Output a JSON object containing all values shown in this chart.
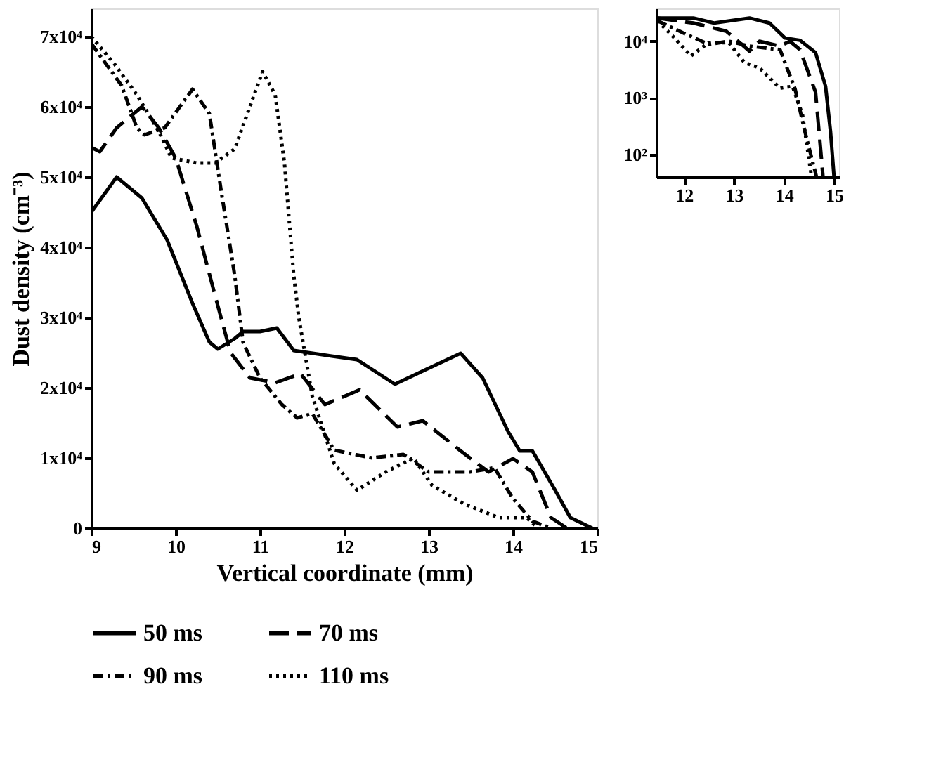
{
  "chart_data": [
    {
      "type": "line",
      "xlabel": "Vertical coordinate (mm)",
      "ylabel": "Dust density (cm⁻³)",
      "xlim": [
        9,
        15
      ],
      "ylim": [
        0,
        74000
      ],
      "xticks": [
        9,
        10,
        11,
        12,
        13,
        14,
        15
      ],
      "yticks": [
        0,
        {
          "value": 10000,
          "label": "1x10⁴"
        },
        {
          "value": 20000,
          "label": "2x10⁴"
        },
        {
          "value": 30000,
          "label": "3x10⁴"
        },
        {
          "value": 40000,
          "label": "4x10⁴"
        },
        {
          "value": 50000,
          "label": "5x10⁴"
        },
        {
          "value": 60000,
          "label": "6x10⁴"
        },
        {
          "value": 70000,
          "label": "7x10⁴"
        }
      ],
      "grid": false,
      "legend": "bottom",
      "marker": "none",
      "series": [
        {
          "name": "50 ms",
          "color": "#000000",
          "line_style": "solid",
          "x": [
            9.0,
            9.3,
            9.6,
            9.9,
            10.0,
            10.2,
            10.4,
            10.5,
            10.7,
            10.8,
            11.0,
            11.2,
            11.4,
            11.85,
            12.15,
            12.6,
            12.97,
            13.38,
            13.64,
            13.94,
            14.08,
            14.23,
            14.5,
            14.68,
            14.94
          ],
          "values": [
            45000,
            50000,
            47000,
            41000,
            38000,
            32000,
            26500,
            25500,
            27000,
            28000,
            28000,
            28500,
            25300,
            24500,
            24000,
            20500,
            22600,
            24900,
            21400,
            13800,
            11000,
            11000,
            5400,
            1500,
            0
          ]
        },
        {
          "name": "70 ms",
          "color": "#000000",
          "line_style": "dashed",
          "x": [
            9.0,
            9.1,
            9.3,
            9.6,
            9.8,
            10.0,
            10.25,
            10.47,
            10.65,
            10.88,
            11.18,
            11.48,
            11.77,
            12.18,
            12.63,
            12.93,
            13.38,
            13.71,
            14.0,
            14.23,
            14.45,
            14.64
          ],
          "values": [
            54200,
            53600,
            57000,
            60000,
            57000,
            52700,
            43000,
            33000,
            25000,
            21400,
            20700,
            22000,
            17600,
            19700,
            14400,
            15300,
            11000,
            8000,
            9900,
            8000,
            1500,
            0
          ]
        },
        {
          "name": "90 ms",
          "color": "#000000",
          "line_style": "dashdot",
          "x": [
            9.0,
            9.36,
            9.54,
            9.63,
            9.87,
            10.2,
            10.4,
            10.54,
            10.7,
            10.8,
            11.0,
            11.26,
            11.44,
            11.62,
            11.88,
            12.33,
            12.7,
            13.0,
            13.49,
            13.78,
            14.0,
            14.23,
            14.45
          ],
          "values": [
            69000,
            63000,
            57000,
            56000,
            57000,
            62500,
            59000,
            48000,
            36000,
            26400,
            21400,
            17600,
            15700,
            16300,
            11100,
            10000,
            10500,
            8000,
            8000,
            8600,
            4200,
            1000,
            0
          ]
        },
        {
          "name": "110 ms",
          "color": "#000000",
          "line_style": "dotted",
          "x": [
            9.0,
            9.28,
            9.54,
            9.8,
            9.95,
            10.25,
            10.47,
            10.7,
            10.88,
            11.03,
            11.18,
            11.29,
            11.4,
            11.46,
            11.62,
            11.88,
            12.15,
            12.49,
            12.82,
            13.04,
            13.41,
            13.83,
            14.16,
            14.3
          ],
          "values": [
            70000,
            66000,
            61700,
            56500,
            52700,
            52000,
            52000,
            54000,
            60000,
            65000,
            61700,
            52000,
            36000,
            30000,
            18800,
            9200,
            5400,
            8000,
            10000,
            6100,
            3500,
            1500,
            1500,
            0
          ]
        }
      ]
    },
    {
      "type": "line",
      "log": "y",
      "xlim": [
        11.45,
        15.1
      ],
      "ylim": [
        40,
        38000
      ],
      "xticks": [
        12,
        13,
        14,
        15
      ],
      "yticks": [
        {
          "value": 100,
          "label": "10²"
        },
        {
          "value": 1000,
          "label": "10³"
        },
        {
          "value": 10000,
          "label": "10⁴"
        }
      ],
      "grid": false,
      "marker": "none",
      "series": [
        {
          "color": "#000000",
          "line_style": "solid",
          "x": [
            11.47,
            12.19,
            12.6,
            13.31,
            13.71,
            14.02,
            14.32,
            14.63,
            14.83,
            14.93,
            15.0
          ],
          "values": [
            25700,
            25700,
            21000,
            25700,
            21000,
            11400,
            10400,
            6300,
            1600,
            250,
            40
          ]
        },
        {
          "color": "#000000",
          "line_style": "dashed",
          "x": [
            11.47,
            12.19,
            12.85,
            13.31,
            13.51,
            13.92,
            14.12,
            14.32,
            14.63,
            14.78
          ],
          "values": [
            25700,
            21000,
            15000,
            6700,
            10000,
            8200,
            10000,
            7100,
            1260,
            40
          ]
        },
        {
          "color": "#000000",
          "line_style": "dashdot",
          "x": [
            11.47,
            11.99,
            12.5,
            12.9,
            13.31,
            13.92,
            14.22,
            14.42,
            14.65
          ],
          "values": [
            23000,
            14000,
            8800,
            10000,
            8200,
            7100,
            1450,
            250,
            40
          ]
        },
        {
          "color": "#000000",
          "line_style": "dotted",
          "x": [
            11.47,
            11.78,
            12.14,
            12.5,
            12.9,
            13.21,
            13.51,
            13.92,
            14.17,
            14.37,
            14.55
          ],
          "values": [
            23000,
            12200,
            5500,
            9500,
            9400,
            4200,
            3400,
            1480,
            1600,
            500,
            40
          ]
        }
      ]
    }
  ]
}
